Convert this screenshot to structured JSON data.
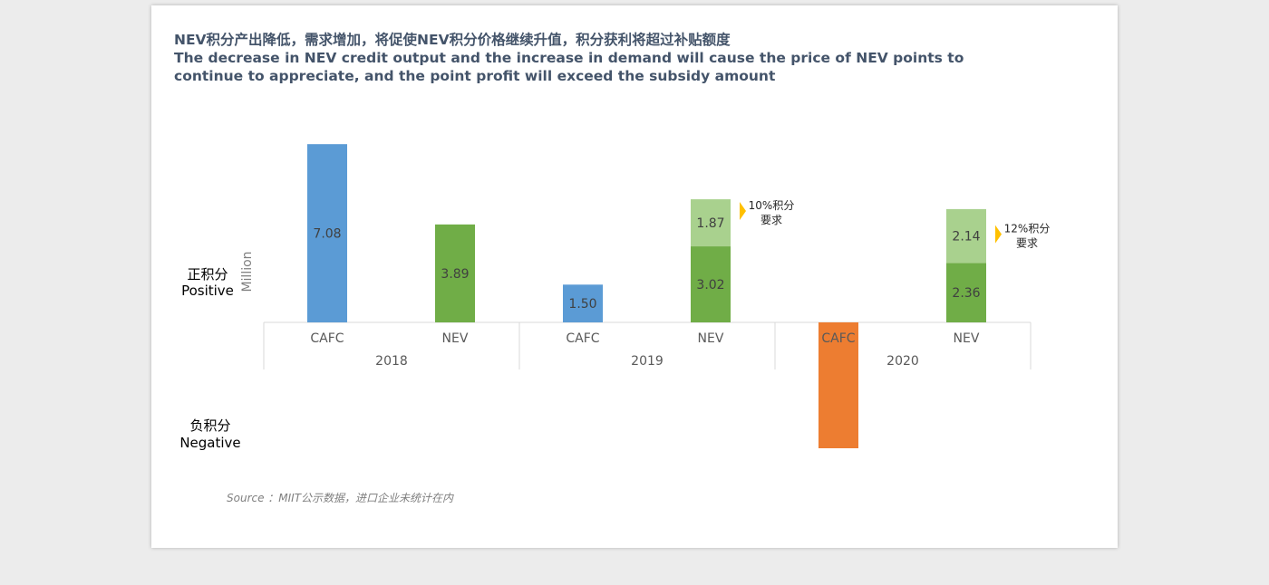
{
  "title_cn": "NEV积分产出降低，需求增加，将促使NEV积分价格继续升值，积分获利将超过补贴额度",
  "title_en": "The decrease in NEV credit output and the increase in demand will cause the price of NEV points to continue to appreciate, and the point profit will exceed the subsidy amount",
  "source": "Source ：MIIT公示数据，进口企业未统计在内",
  "chart_data": {
    "type": "bar",
    "ylabel": "Million",
    "positive_label": {
      "cn": "正积分",
      "en": "Positive"
    },
    "negative_label": {
      "cn": "负积分",
      "en": "Negative"
    },
    "groups": [
      "2018",
      "2019",
      "2020"
    ],
    "categories": [
      "CAFC",
      "NEV",
      "CAFC",
      "NEV",
      "CAFC",
      "NEV"
    ],
    "series": [
      {
        "name": "base",
        "values": [
          7.08,
          3.89,
          1.5,
          3.02,
          -5.0,
          2.36
        ],
        "labels": [
          "7.08",
          "3.89",
          "1.50",
          "3.02",
          "",
          "2.36"
        ],
        "colors": [
          "#5b9bd5",
          "#70ad47",
          "#5b9bd5",
          "#70ad47",
          "#ed7d31",
          "#70ad47"
        ]
      },
      {
        "name": "requirement",
        "values": [
          0,
          0,
          0,
          1.87,
          0,
          2.14
        ],
        "labels": [
          "",
          "",
          "",
          "1.87",
          "",
          "2.14"
        ],
        "color": "#a9d18e"
      }
    ],
    "annotations": [
      {
        "index": 3,
        "line1": "10%积分",
        "line2": "要求"
      },
      {
        "index": 5,
        "line1": "12%积分",
        "line2": "要求"
      }
    ],
    "accent": "#ffc000"
  }
}
